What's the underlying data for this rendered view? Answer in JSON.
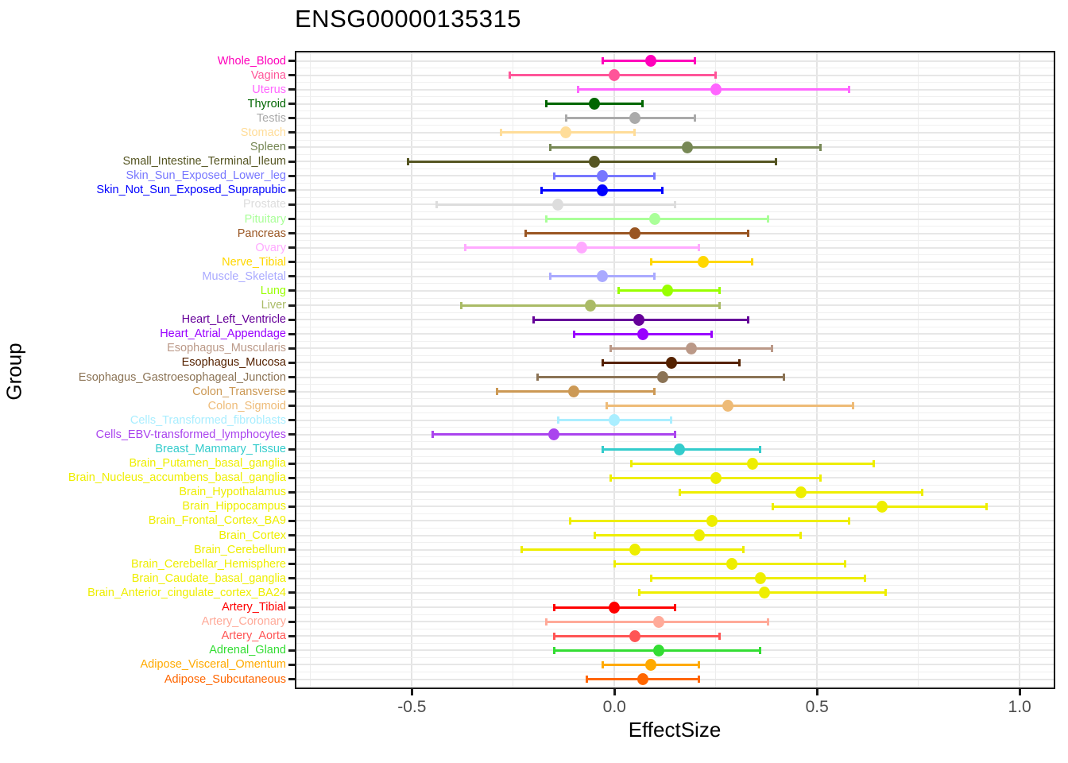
{
  "chart_data": {
    "type": "scatter",
    "variant": "forest-plot-with-error-bars",
    "title": "ENSG00000135315",
    "xlabel": "EffectSize",
    "ylabel": "Group",
    "legend": "none",
    "grid": "on",
    "axis": {
      "x_domain": [
        -0.785,
        1.084
      ],
      "x_ticks": [
        -0.5,
        0.0,
        0.5,
        1.0
      ],
      "x_tick_labels": [
        "-0.5",
        "0.0",
        "0.5",
        "1.0"
      ],
      "x_minor_gridlines": [
        -0.75,
        -0.25,
        0.25,
        0.75
      ]
    },
    "rows": [
      {
        "group": "Whole_Blood",
        "color": "#FF00BB",
        "ci_low": -0.03,
        "effect": 0.09,
        "ci_high": 0.2
      },
      {
        "group": "Vagina",
        "color": "#FF5599",
        "ci_low": -0.26,
        "effect": 0.0,
        "ci_high": 0.25
      },
      {
        "group": "Uterus",
        "color": "#FF66FF",
        "ci_low": -0.09,
        "effect": 0.25,
        "ci_high": 0.58
      },
      {
        "group": "Thyroid",
        "color": "#006600",
        "ci_low": -0.17,
        "effect": -0.05,
        "ci_high": 0.07
      },
      {
        "group": "Testis",
        "color": "#AAAAAA",
        "ci_low": -0.12,
        "effect": 0.05,
        "ci_high": 0.2
      },
      {
        "group": "Stomach",
        "color": "#FFDD99",
        "ci_low": -0.28,
        "effect": -0.12,
        "ci_high": 0.05
      },
      {
        "group": "Spleen",
        "color": "#778855",
        "ci_low": -0.16,
        "effect": 0.18,
        "ci_high": 0.51
      },
      {
        "group": "Small_Intestine_Terminal_Ileum",
        "color": "#555522",
        "ci_low": -0.51,
        "effect": -0.05,
        "ci_high": 0.4
      },
      {
        "group": "Skin_Sun_Exposed_Lower_leg",
        "color": "#7777FF",
        "ci_low": -0.15,
        "effect": -0.03,
        "ci_high": 0.1
      },
      {
        "group": "Skin_Not_Sun_Exposed_Suprapubic",
        "color": "#0000FF",
        "ci_low": -0.18,
        "effect": -0.03,
        "ci_high": 0.12
      },
      {
        "group": "Prostate",
        "color": "#DDDDDD",
        "ci_low": -0.44,
        "effect": -0.14,
        "ci_high": 0.15
      },
      {
        "group": "Pituitary",
        "color": "#AAFF99",
        "ci_low": -0.17,
        "effect": 0.1,
        "ci_high": 0.38
      },
      {
        "group": "Pancreas",
        "color": "#995522",
        "ci_low": -0.22,
        "effect": 0.05,
        "ci_high": 0.33
      },
      {
        "group": "Ovary",
        "color": "#FFAAFF",
        "ci_low": -0.37,
        "effect": -0.08,
        "ci_high": 0.21
      },
      {
        "group": "Nerve_Tibial",
        "color": "#FFD700",
        "ci_low": 0.09,
        "effect": 0.22,
        "ci_high": 0.34
      },
      {
        "group": "Muscle_Skeletal",
        "color": "#AAAAFF",
        "ci_low": -0.16,
        "effect": -0.03,
        "ci_high": 0.1
      },
      {
        "group": "Lung",
        "color": "#99FF00",
        "ci_low": 0.01,
        "effect": 0.13,
        "ci_high": 0.26
      },
      {
        "group": "Liver",
        "color": "#AABB66",
        "ci_low": -0.38,
        "effect": -0.06,
        "ci_high": 0.26
      },
      {
        "group": "Heart_Left_Ventricle",
        "color": "#660099",
        "ci_low": -0.2,
        "effect": 0.06,
        "ci_high": 0.33
      },
      {
        "group": "Heart_Atrial_Appendage",
        "color": "#9900FF",
        "ci_low": -0.1,
        "effect": 0.07,
        "ci_high": 0.24
      },
      {
        "group": "Esophagus_Muscularis",
        "color": "#BB9988",
        "ci_low": -0.01,
        "effect": 0.19,
        "ci_high": 0.39
      },
      {
        "group": "Esophagus_Mucosa",
        "color": "#552200",
        "ci_low": -0.03,
        "effect": 0.14,
        "ci_high": 0.31
      },
      {
        "group": "Esophagus_Gastroesophageal_Junction",
        "color": "#8B7355",
        "ci_low": -0.19,
        "effect": 0.12,
        "ci_high": 0.42
      },
      {
        "group": "Colon_Transverse",
        "color": "#CC9955",
        "ci_low": -0.29,
        "effect": -0.1,
        "ci_high": 0.1
      },
      {
        "group": "Colon_Sigmoid",
        "color": "#EEBB77",
        "ci_low": -0.02,
        "effect": 0.28,
        "ci_high": 0.59
      },
      {
        "group": "Cells_Transformed_fibroblasts",
        "color": "#AAEEFF",
        "ci_low": -0.14,
        "effect": 0.0,
        "ci_high": 0.14
      },
      {
        "group": "Cells_EBV-transformed_lymphocytes",
        "color": "#AA44EE",
        "ci_low": -0.45,
        "effect": -0.15,
        "ci_high": 0.15
      },
      {
        "group": "Breast_Mammary_Tissue",
        "color": "#33CCCC",
        "ci_low": -0.03,
        "effect": 0.16,
        "ci_high": 0.36
      },
      {
        "group": "Brain_Putamen_basal_ganglia",
        "color": "#EEEE00",
        "ci_low": 0.04,
        "effect": 0.34,
        "ci_high": 0.64
      },
      {
        "group": "Brain_Nucleus_accumbens_basal_ganglia",
        "color": "#EEEE00",
        "ci_low": -0.01,
        "effect": 0.25,
        "ci_high": 0.51
      },
      {
        "group": "Brain_Hypothalamus",
        "color": "#EEEE00",
        "ci_low": 0.16,
        "effect": 0.46,
        "ci_high": 0.76
      },
      {
        "group": "Brain_Hippocampus",
        "color": "#EEEE00",
        "ci_low": 0.39,
        "effect": 0.66,
        "ci_high": 0.92
      },
      {
        "group": "Brain_Frontal_Cortex_BA9",
        "color": "#EEEE00",
        "ci_low": -0.11,
        "effect": 0.24,
        "ci_high": 0.58
      },
      {
        "group": "Brain_Cortex",
        "color": "#EEEE00",
        "ci_low": -0.05,
        "effect": 0.21,
        "ci_high": 0.46
      },
      {
        "group": "Brain_Cerebellum",
        "color": "#EEEE00",
        "ci_low": -0.23,
        "effect": 0.05,
        "ci_high": 0.32
      },
      {
        "group": "Brain_Cerebellar_Hemisphere",
        "color": "#EEEE00",
        "ci_low": 0.0,
        "effect": 0.29,
        "ci_high": 0.57
      },
      {
        "group": "Brain_Caudate_basal_ganglia",
        "color": "#EEEE00",
        "ci_low": 0.09,
        "effect": 0.36,
        "ci_high": 0.62
      },
      {
        "group": "Brain_Anterior_cingulate_cortex_BA24",
        "color": "#EEEE00",
        "ci_low": 0.06,
        "effect": 0.37,
        "ci_high": 0.67
      },
      {
        "group": "Artery_Tibial",
        "color": "#FF0000",
        "ci_low": -0.15,
        "effect": 0.0,
        "ci_high": 0.15
      },
      {
        "group": "Artery_Coronary",
        "color": "#FFAA99",
        "ci_low": -0.17,
        "effect": 0.11,
        "ci_high": 0.38
      },
      {
        "group": "Artery_Aorta",
        "color": "#FF5555",
        "ci_low": -0.15,
        "effect": 0.05,
        "ci_high": 0.26
      },
      {
        "group": "Adrenal_Gland",
        "color": "#33DD33",
        "ci_low": -0.15,
        "effect": 0.11,
        "ci_high": 0.36
      },
      {
        "group": "Adipose_Visceral_Omentum",
        "color": "#FFAA00",
        "ci_low": -0.03,
        "effect": 0.09,
        "ci_high": 0.21
      },
      {
        "group": "Adipose_Subcutaneous",
        "color": "#FF6600",
        "ci_low": -0.07,
        "effect": 0.07,
        "ci_high": 0.21
      }
    ]
  }
}
